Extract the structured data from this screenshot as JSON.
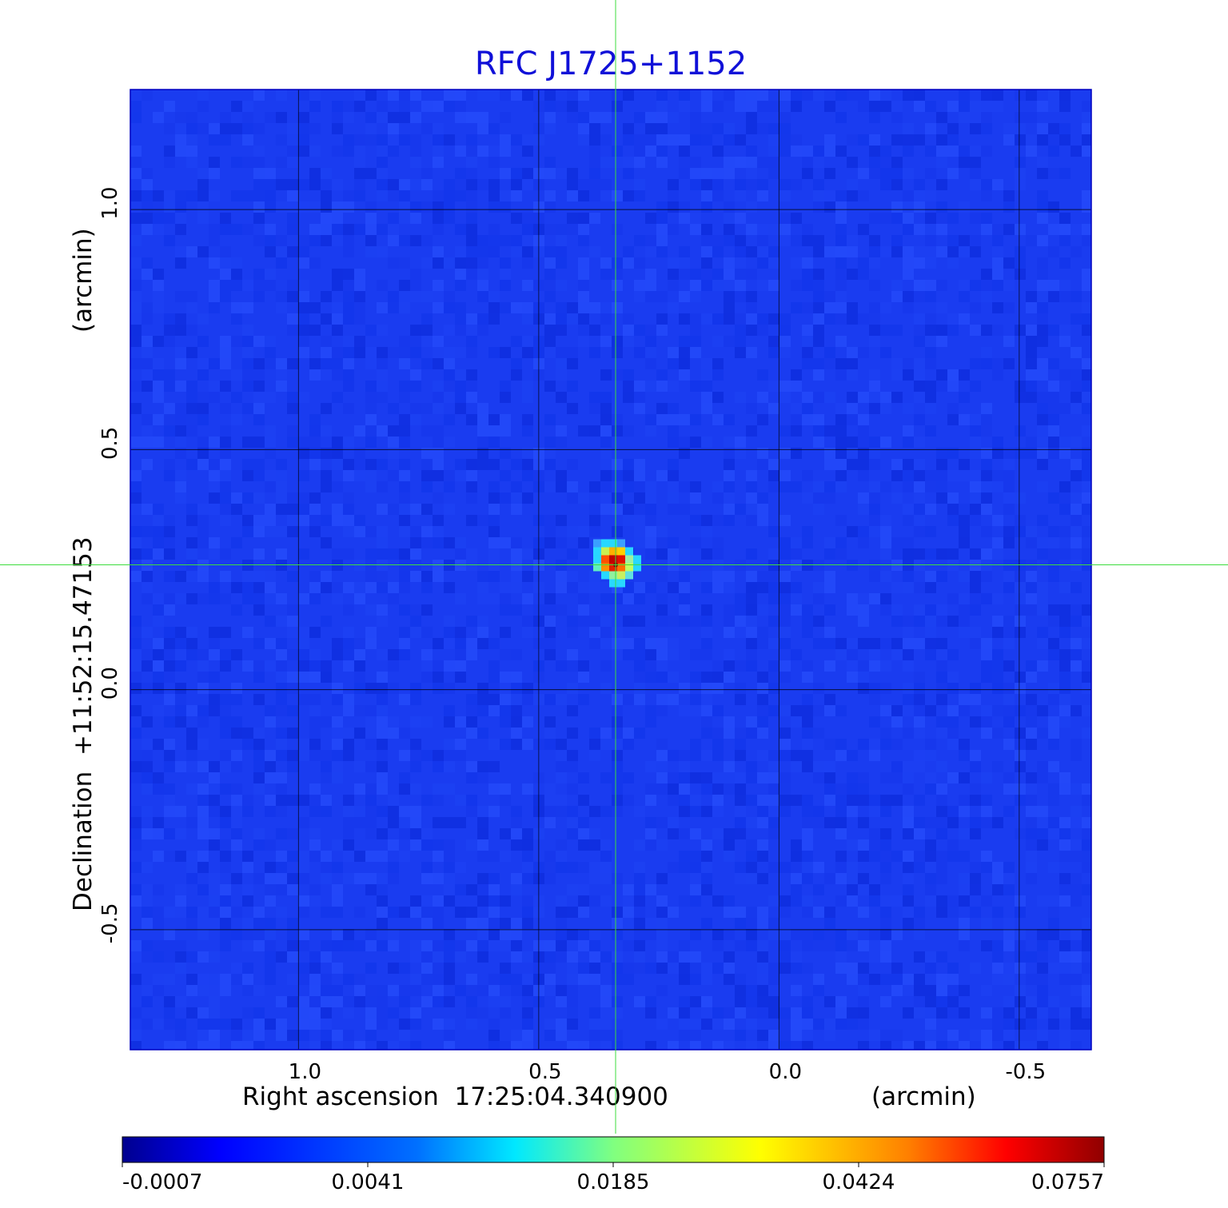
{
  "chart_data": {
    "type": "heatmap",
    "title": "RFC J1725+1152",
    "xlabel": "Right ascension  17:25:04.340900",
    "xunit": "(arcmin)",
    "ylabel": "Declination  +11:52:15.47153",
    "yunit": "(arcmin)",
    "x_reversed": true,
    "xlim": [
      1.35,
      -0.65
    ],
    "ylim": [
      -0.75,
      1.25
    ],
    "x_ticks": [
      {
        "value": 1.0,
        "label": "1.0"
      },
      {
        "value": 0.5,
        "label": "0.5"
      },
      {
        "value": 0.0,
        "label": "0.0"
      },
      {
        "value": -0.5,
        "label": "-0.5"
      }
    ],
    "y_ticks": [
      {
        "value": 1.0,
        "label": "1.0"
      },
      {
        "value": 0.5,
        "label": "0.5"
      },
      {
        "value": 0.0,
        "label": "0.0"
      },
      {
        "value": -0.5,
        "label": "-0.5"
      }
    ],
    "grid": true,
    "crosshair": {
      "x": 0.34,
      "y": 0.26
    },
    "source_peak": {
      "x": 0.34,
      "y": 0.26,
      "value": 0.0757
    },
    "colorbar": {
      "min": -0.0007,
      "max": 0.0757,
      "tick_labels": [
        "-0.0007",
        "0.0041",
        "0.0185",
        "0.0424",
        "0.0757"
      ],
      "colormap": "jet"
    },
    "colors": {
      "title": "#1010d8",
      "background_map": "#1a3cf0",
      "crosshair": "#3ddc3d",
      "grid": "#000000"
    }
  }
}
